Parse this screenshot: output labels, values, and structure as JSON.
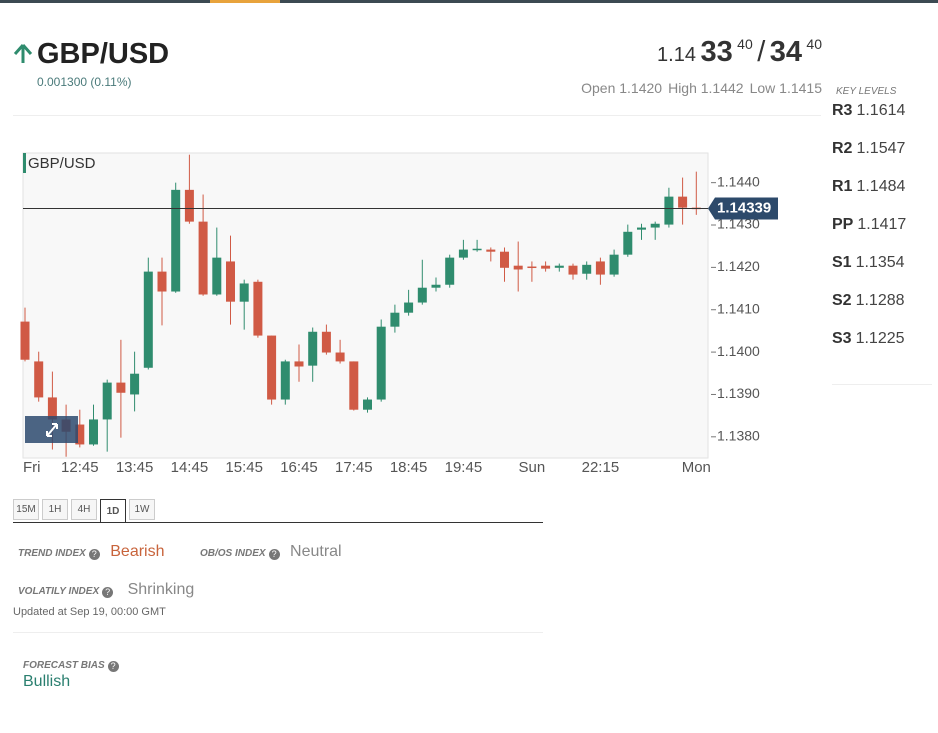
{
  "header": {
    "symbol": "GBP/USD",
    "change": "0.001300 (0.11%)",
    "price": {
      "bid_prefix": "1.14",
      "bid_main": "33",
      "bid_sup": "40",
      "separator": "/",
      "ask_main": "34",
      "ask_sup": "40"
    },
    "stats": [
      "Open 1.1420",
      "High 1.1442",
      "Low 1.1415"
    ]
  },
  "key_levels": {
    "title": "KEY LEVELS",
    "levels": [
      {
        "name": "R3",
        "value": "1.1614"
      },
      {
        "name": "R2",
        "value": "1.1547"
      },
      {
        "name": "R1",
        "value": "1.1484"
      },
      {
        "name": "PP",
        "value": "1.1417"
      },
      {
        "name": "S1",
        "value": "1.1354"
      },
      {
        "name": "S2",
        "value": "1.1288"
      },
      {
        "name": "S3",
        "value": "1.1225"
      }
    ]
  },
  "chart_data": {
    "type": "candlestick",
    "title": "GBP/USD",
    "categories": [
      "Fri",
      null,
      null,
      null,
      "12:45",
      null,
      null,
      null,
      "13:45",
      null,
      null,
      null,
      "14:45",
      null,
      null,
      null,
      "15:45",
      null,
      null,
      null,
      "16:45",
      null,
      null,
      null,
      "17:45",
      null,
      null,
      null,
      "18:45",
      null,
      null,
      null,
      "19:45",
      null,
      null,
      null,
      null,
      "Sun",
      null,
      null,
      null,
      null,
      "22:15",
      null,
      null,
      null,
      null,
      null,
      null,
      "Mon"
    ],
    "open": [
      1.14072,
      1.13978,
      1.13893,
      1.13841,
      1.13829,
      1.13782,
      1.13841,
      1.13928,
      1.139,
      1.13963,
      1.1419,
      1.14143,
      1.14383,
      1.14308,
      1.14136,
      1.14214,
      1.14119,
      1.14166,
      1.14039,
      1.13888,
      1.13978,
      1.13968,
      1.14048,
      1.13999,
      1.13978,
      1.13864,
      1.13888,
      1.1406,
      1.14093,
      1.14117,
      1.14152,
      1.14159,
      1.14223,
      1.14242,
      1.14242,
      1.14237,
      1.14204,
      1.14202,
      1.14204,
      1.14199,
      1.14204,
      1.14185,
      1.14214,
      1.14183,
      1.1423,
      1.14289,
      1.14294,
      1.14301,
      1.14367,
      1.14341
    ],
    "high": [
      1.14105,
      1.14001,
      1.13954,
      1.13876,
      1.13864,
      1.13876,
      1.13935,
      1.14029,
      1.14001,
      1.14223,
      1.14223,
      1.144,
      1.14466,
      1.14372,
      1.14294,
      1.14275,
      1.14171,
      1.14171,
      1.14039,
      1.13982,
      1.14018,
      1.14058,
      1.14065,
      1.14029,
      1.13978,
      1.13893,
      1.14077,
      1.14112,
      1.14147,
      1.14218,
      1.14176,
      1.1423,
      1.14265,
      1.14265,
      1.14247,
      1.14247,
      1.14261,
      1.14214,
      1.14214,
      1.14209,
      1.14209,
      1.14214,
      1.14223,
      1.14242,
      1.14301,
      1.14303,
      1.14308,
      1.14388,
      1.14412,
      1.14426
    ],
    "low": [
      1.13978,
      1.13883,
      1.1377,
      1.13753,
      1.13775,
      1.13779,
      1.13765,
      1.13798,
      1.1386,
      1.13959,
      1.14063,
      1.1414,
      1.14303,
      1.14133,
      1.14133,
      1.14065,
      1.14053,
      1.14034,
      1.13876,
      1.13876,
      1.1393,
      1.1393,
      1.13994,
      1.13973,
      1.13862,
      1.13857,
      1.13883,
      1.14046,
      1.14086,
      1.14112,
      1.14143,
      1.14152,
      1.14218,
      1.14237,
      1.14214,
      1.14166,
      1.14143,
      1.14166,
      1.1419,
      1.1419,
      1.14171,
      1.14171,
      1.14159,
      1.14178,
      1.14225,
      1.14265,
      1.14265,
      1.14294,
      1.14301,
      1.14324
    ],
    "close": [
      1.13982,
      1.13893,
      1.13841,
      1.13812,
      1.13782,
      1.13841,
      1.13928,
      1.13904,
      1.13949,
      1.1419,
      1.14143,
      1.14383,
      1.14308,
      1.14136,
      1.14223,
      1.14119,
      1.14162,
      1.14039,
      1.13888,
      1.13978,
      1.13966,
      1.14048,
      1.13999,
      1.13978,
      1.13864,
      1.13888,
      1.1406,
      1.14093,
      1.14117,
      1.14152,
      1.14159,
      1.14223,
      1.14242,
      1.14244,
      1.14237,
      1.14199,
      1.14195,
      1.14199,
      1.14197,
      1.14204,
      1.14183,
      1.14206,
      1.14183,
      1.1423,
      1.14284,
      1.14294,
      1.14303,
      1.14367,
      1.14341,
      1.14339
    ],
    "up_color": "#2f8c6e",
    "down_color": "#d05a45",
    "current_price": 1.14339,
    "ylim": [
      1.1375,
      1.1447
    ],
    "yticks": [
      {
        "value": 1.138,
        "label": "1.1380"
      },
      {
        "value": 1.139,
        "label": "1.1390"
      },
      {
        "value": 1.14,
        "label": "1.1400"
      },
      {
        "value": 1.141,
        "label": "1.1410"
      },
      {
        "value": 1.142,
        "label": "1.1420"
      },
      {
        "value": 1.143,
        "label": "1.1430"
      },
      {
        "value": 1.144,
        "label": "1.1440"
      }
    ]
  },
  "timeframes": {
    "options": [
      "15M",
      "1H",
      "4H",
      "1D",
      "1W"
    ],
    "active": 3
  },
  "indices": [
    {
      "label": "TREND INDEX",
      "value": "Bearish"
    },
    {
      "label": "OB/OS INDEX",
      "value": "Neutral"
    },
    {
      "label": "VOLATILY INDEX",
      "value": "Shrinking"
    }
  ],
  "updated": "Updated at Sep 19, 00:00 GMT",
  "forecast": {
    "label": "FORECAST BIAS",
    "value": "Bullish"
  }
}
